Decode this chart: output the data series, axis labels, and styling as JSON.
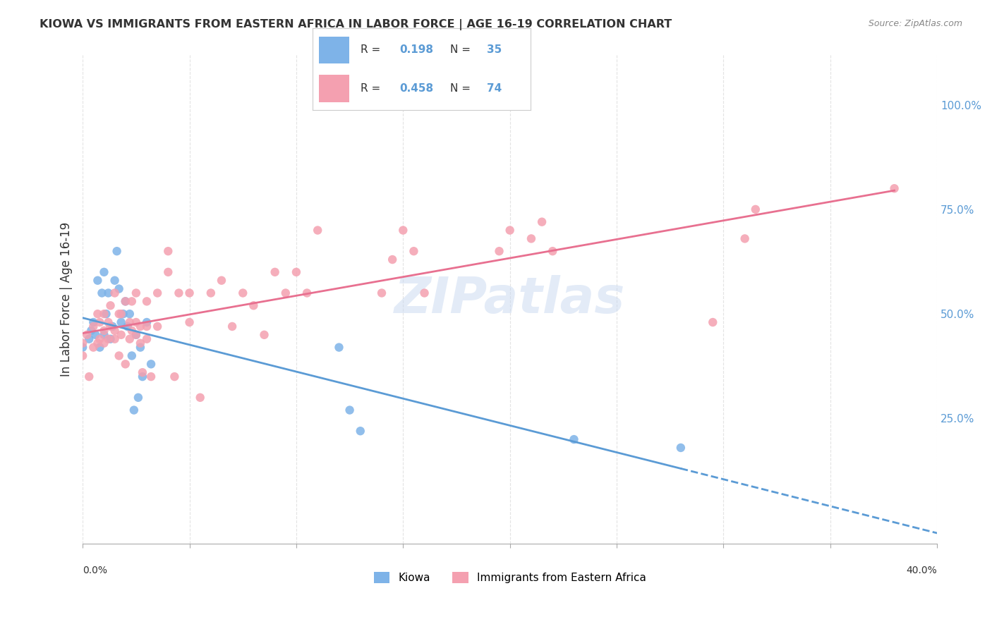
{
  "title": "KIOWA VS IMMIGRANTS FROM EASTERN AFRICA IN LABOR FORCE | AGE 16-19 CORRELATION CHART",
  "source": "Source: ZipAtlas.com",
  "ylabel": "In Labor Force | Age 16-19",
  "xlim": [
    0.0,
    0.4
  ],
  "ylim": [
    -0.05,
    1.12
  ],
  "ytick_labels": [
    "25.0%",
    "50.0%",
    "75.0%",
    "100.0%"
  ],
  "ytick_values": [
    0.25,
    0.5,
    0.75,
    1.0
  ],
  "background_color": "#ffffff",
  "grid_color": "#dddddd",
  "kiowa_color": "#7eb3e8",
  "eastern_africa_color": "#f4a0b0",
  "kiowa_line_color": "#5b9bd5",
  "eastern_africa_line_color": "#e87090",
  "R_kiowa": 0.198,
  "N_kiowa": 35,
  "R_eastern": 0.458,
  "N_eastern": 74,
  "kiowa_scatter_x": [
    0.0,
    0.003,
    0.004,
    0.005,
    0.006,
    0.007,
    0.008,
    0.009,
    0.01,
    0.01,
    0.011,
    0.012,
    0.013,
    0.014,
    0.015,
    0.016,
    0.017,
    0.018,
    0.019,
    0.02,
    0.021,
    0.022,
    0.023,
    0.024,
    0.025,
    0.026,
    0.027,
    0.028,
    0.03,
    0.032,
    0.12,
    0.125,
    0.13,
    0.23,
    0.28
  ],
  "kiowa_scatter_y": [
    0.42,
    0.44,
    0.46,
    0.48,
    0.45,
    0.58,
    0.42,
    0.55,
    0.6,
    0.45,
    0.5,
    0.55,
    0.44,
    0.47,
    0.58,
    0.65,
    0.56,
    0.48,
    0.5,
    0.53,
    0.47,
    0.5,
    0.4,
    0.27,
    0.45,
    0.3,
    0.42,
    0.35,
    0.48,
    0.38,
    0.42,
    0.27,
    0.22,
    0.2,
    0.18
  ],
  "eastern_scatter_x": [
    0.0,
    0.0,
    0.002,
    0.003,
    0.005,
    0.005,
    0.007,
    0.007,
    0.008,
    0.008,
    0.01,
    0.01,
    0.01,
    0.012,
    0.012,
    0.013,
    0.013,
    0.015,
    0.015,
    0.015,
    0.017,
    0.017,
    0.018,
    0.018,
    0.02,
    0.02,
    0.022,
    0.022,
    0.023,
    0.023,
    0.025,
    0.025,
    0.025,
    0.027,
    0.027,
    0.028,
    0.03,
    0.03,
    0.03,
    0.032,
    0.035,
    0.035,
    0.04,
    0.04,
    0.043,
    0.045,
    0.05,
    0.05,
    0.055,
    0.06,
    0.065,
    0.07,
    0.075,
    0.08,
    0.085,
    0.09,
    0.095,
    0.1,
    0.105,
    0.11,
    0.14,
    0.145,
    0.15,
    0.155,
    0.16,
    0.195,
    0.2,
    0.21,
    0.215,
    0.22,
    0.295,
    0.31,
    0.315,
    0.38
  ],
  "eastern_scatter_y": [
    0.4,
    0.43,
    0.45,
    0.35,
    0.42,
    0.47,
    0.43,
    0.5,
    0.44,
    0.48,
    0.43,
    0.46,
    0.5,
    0.44,
    0.48,
    0.47,
    0.52,
    0.44,
    0.46,
    0.55,
    0.4,
    0.5,
    0.45,
    0.5,
    0.38,
    0.53,
    0.44,
    0.48,
    0.46,
    0.53,
    0.45,
    0.48,
    0.55,
    0.43,
    0.47,
    0.36,
    0.44,
    0.47,
    0.53,
    0.35,
    0.47,
    0.55,
    0.6,
    0.65,
    0.35,
    0.55,
    0.48,
    0.55,
    0.3,
    0.55,
    0.58,
    0.47,
    0.55,
    0.52,
    0.45,
    0.6,
    0.55,
    0.6,
    0.55,
    0.7,
    0.55,
    0.63,
    0.7,
    0.65,
    0.55,
    0.65,
    0.7,
    0.68,
    0.72,
    0.65,
    0.48,
    0.68,
    0.75,
    0.8
  ],
  "watermark": "ZIPatlas"
}
